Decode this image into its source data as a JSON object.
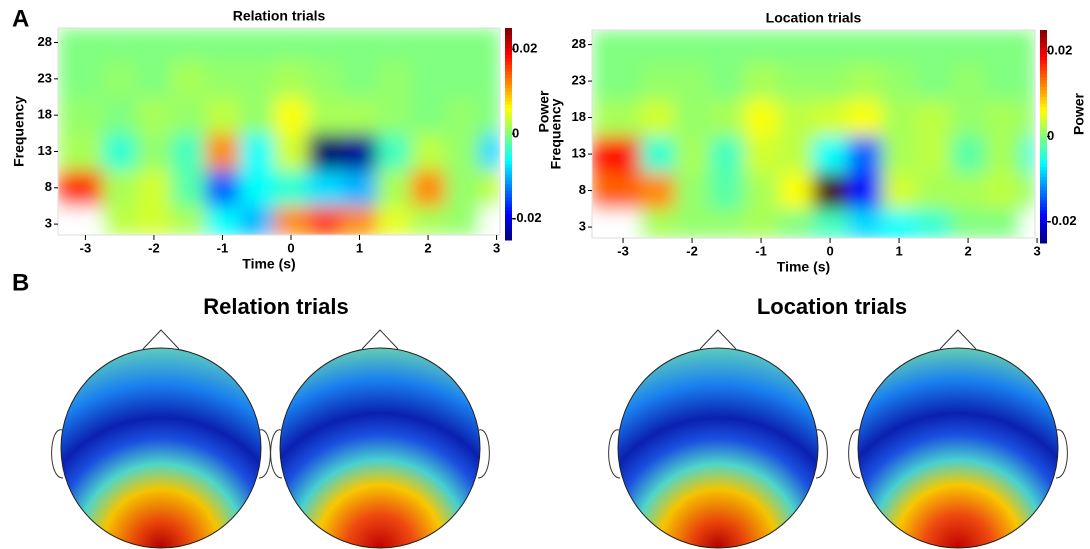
{
  "panel_labels": [
    "A",
    "B"
  ],
  "topoplot_titles": [
    "Relation trials",
    "Location trials"
  ],
  "chart_data": [
    {
      "type": "heatmap",
      "title": "Relation trials",
      "x_label": "Time (s)",
      "y_label": "Frequency",
      "colorbar_label": "Power",
      "x": [
        -3,
        -2.5,
        -2,
        -1.5,
        -1,
        -0.5,
        0,
        0.5,
        1,
        1.5,
        2,
        2.5,
        3
      ],
      "y": [
        3,
        8,
        13,
        18,
        23,
        28
      ],
      "values": [
        [
          null,
          0.003,
          0.004,
          0.002,
          -0.006,
          -0.01,
          0.012,
          0.016,
          0.012,
          0.005,
          0.002,
          0.001,
          null
        ],
        [
          0.016,
          0.002,
          0.004,
          -0.002,
          -0.014,
          -0.006,
          -0.004,
          -0.008,
          -0.01,
          0.002,
          0.012,
          0.001,
          0.003
        ],
        [
          0.002,
          -0.004,
          0.001,
          -0.003,
          0.012,
          -0.006,
          0.004,
          -0.026,
          -0.024,
          -0.003,
          0.003,
          0.001,
          -0.008
        ],
        [
          0.001,
          0,
          0.002,
          0.001,
          0.003,
          0.001,
          0.006,
          0.002,
          0.002,
          0.001,
          0,
          0.001,
          0
        ],
        [
          0,
          0.001,
          0,
          0.002,
          0.001,
          0.001,
          0.002,
          0.001,
          0,
          0.001,
          0,
          0,
          0
        ],
        [
          0,
          0,
          0,
          0,
          0,
          0,
          0,
          0,
          0,
          0,
          0,
          0,
          0
        ]
      ],
      "xlim": [
        -3.4,
        3.05
      ],
      "ylim": [
        1.5,
        30
      ],
      "xticks": [
        -3,
        -2,
        -1,
        0,
        1,
        2,
        3
      ],
      "yticks": [
        3,
        8,
        13,
        18,
        23,
        28
      ],
      "clim": [
        -0.025,
        0.025
      ],
      "cticks": [
        -0.02,
        0,
        0.02
      ],
      "colormap": "jet"
    },
    {
      "type": "heatmap",
      "title": "Location trials",
      "x_label": "Time (s)",
      "y_label": "Frequency",
      "colorbar_label": "Power",
      "x": [
        -3,
        -2.5,
        -2,
        -1.5,
        -1,
        -0.5,
        0,
        0.5,
        1,
        1.5,
        2,
        2.5,
        3
      ],
      "y": [
        3,
        8,
        13,
        18,
        23,
        28
      ],
      "values": [
        [
          null,
          0.002,
          0.001,
          0.001,
          0.002,
          0,
          -0.003,
          -0.008,
          -0.006,
          -0.004,
          0,
          0,
          null
        ],
        [
          0.014,
          0.012,
          0.001,
          -0.002,
          0.002,
          0.006,
          0.028,
          -0.018,
          0.004,
          0.002,
          0.002,
          0.003,
          0.001
        ],
        [
          0.018,
          -0.004,
          0.002,
          -0.003,
          0.004,
          0.003,
          -0.006,
          -0.014,
          0.002,
          0.003,
          -0.002,
          0.002,
          -0.004
        ],
        [
          0.002,
          0.004,
          0.001,
          0.002,
          0.006,
          0.003,
          0.004,
          0.006,
          0.002,
          0.003,
          0.001,
          0.002,
          0.001
        ],
        [
          0,
          0.001,
          0.001,
          0,
          0.002,
          0.001,
          0.001,
          0.002,
          0.001,
          0,
          0.001,
          0,
          0
        ],
        [
          0,
          0,
          0,
          0,
          0,
          0,
          0,
          0,
          0,
          0,
          0,
          0,
          0
        ]
      ],
      "xlim": [
        -3.45,
        2.97
      ],
      "ylim": [
        1.5,
        30
      ],
      "xticks": [
        -3,
        -2,
        -1,
        0,
        1,
        2,
        3
      ],
      "yticks": [
        3,
        8,
        13,
        18,
        23,
        28
      ],
      "clim": [
        -0.025,
        0.025
      ],
      "cticks": [
        -0.02,
        0,
        0.02
      ],
      "colormap": "jet"
    }
  ]
}
